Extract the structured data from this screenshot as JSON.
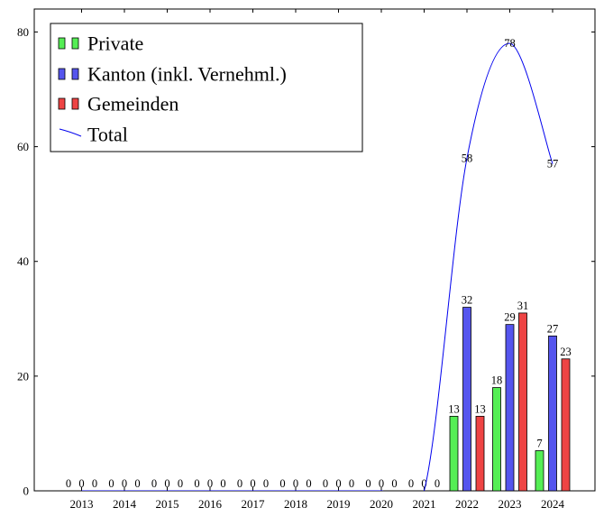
{
  "chart_data": {
    "type": "bar",
    "categories": [
      "2013",
      "2014",
      "2015",
      "2016",
      "2017",
      "2018",
      "2019",
      "2020",
      "2021",
      "2022",
      "2023",
      "2024"
    ],
    "series": [
      {
        "name": "Private",
        "kind": "bar",
        "color": "#55ee55",
        "values": [
          0,
          0,
          0,
          0,
          0,
          0,
          0,
          0,
          0,
          13,
          18,
          7
        ]
      },
      {
        "name": "Kanton (inkl. Vernehml.)",
        "kind": "bar",
        "color": "#5555ee",
        "values": [
          0,
          0,
          0,
          0,
          0,
          0,
          0,
          0,
          0,
          32,
          29,
          27
        ]
      },
      {
        "name": "Gemeinden",
        "kind": "bar",
        "color": "#ee4444",
        "values": [
          0,
          0,
          0,
          0,
          0,
          0,
          0,
          0,
          0,
          13,
          31,
          23
        ]
      },
      {
        "name": "Total",
        "kind": "line",
        "smooth": true,
        "color": "#0000ee",
        "values": [
          0,
          0,
          0,
          0,
          0,
          0,
          0,
          0,
          0,
          58,
          78,
          57
        ]
      }
    ],
    "title": "",
    "xlabel": "",
    "ylabel": "",
    "ylim": [
      0,
      84
    ],
    "yticks": [
      0,
      20,
      40,
      60,
      80
    ],
    "grid": false,
    "legend_position": "top-left",
    "data_labels": true
  }
}
